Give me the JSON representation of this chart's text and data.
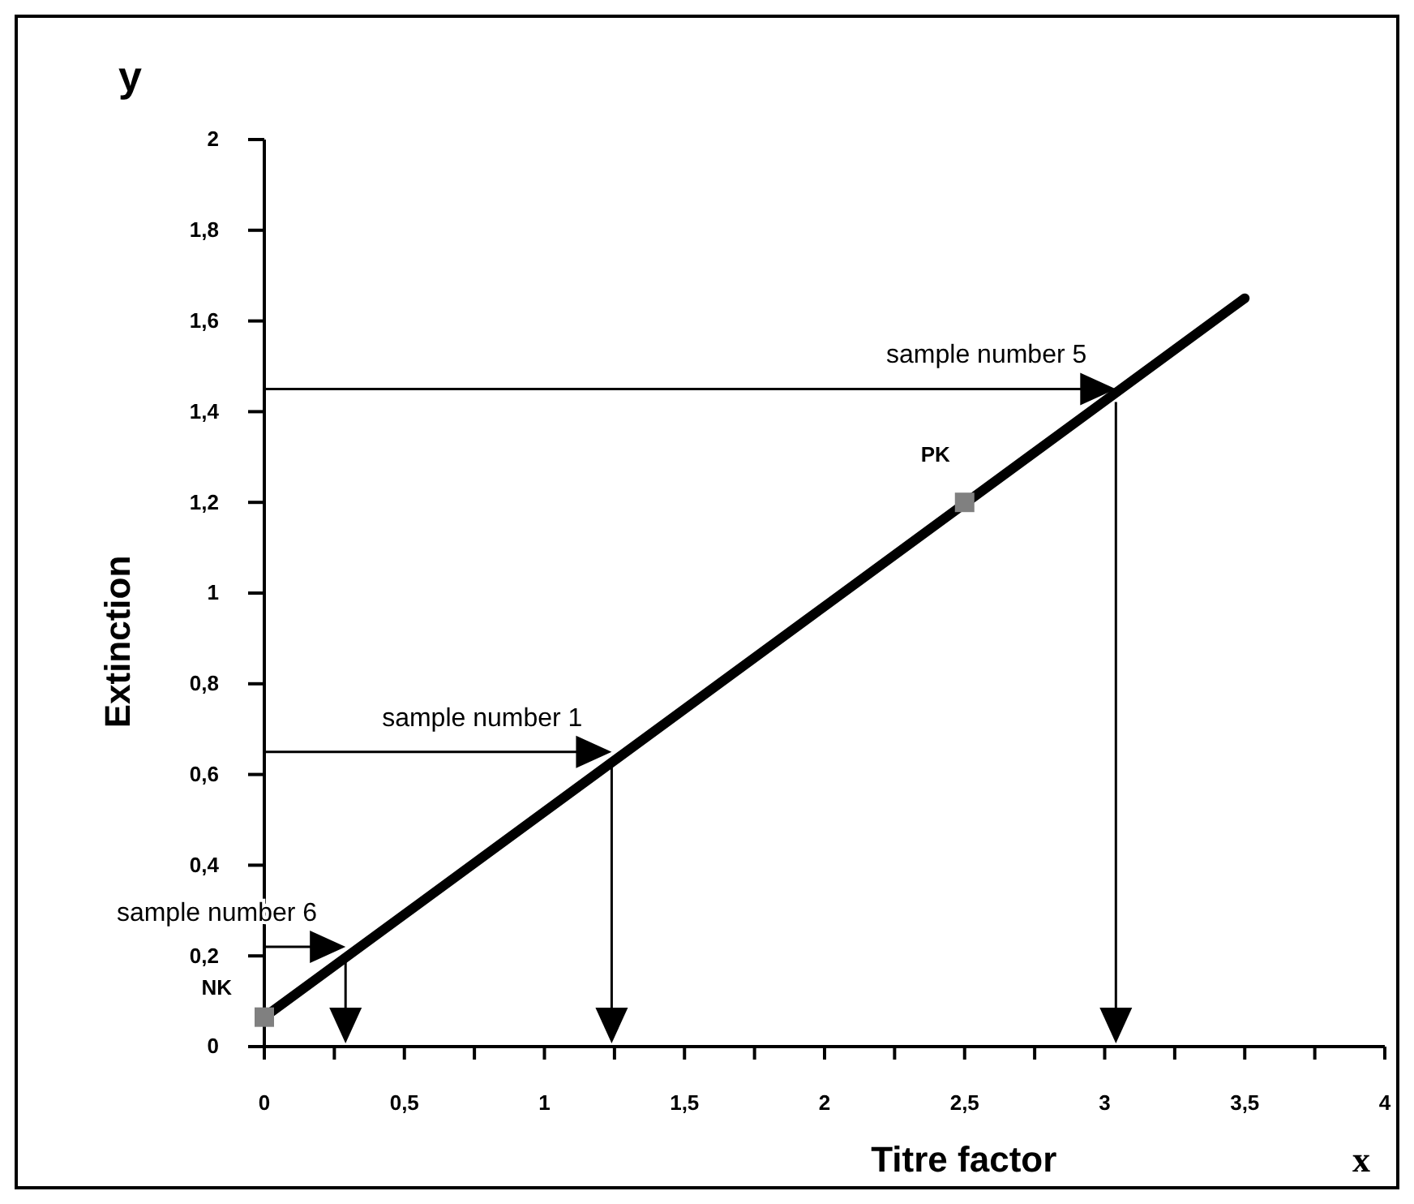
{
  "chart_data": {
    "type": "line",
    "xlabel": "Titre factor",
    "ylabel": "Extinction",
    "xlim": [
      0,
      4
    ],
    "ylim": [
      0,
      2
    ],
    "xticks": [
      0,
      {
        "value": 0.25,
        "label": null
      },
      {
        "value": 0.5,
        "label": "0,5"
      },
      {
        "value": 0.75,
        "label": null
      },
      1,
      {
        "value": 1.25,
        "label": null
      },
      {
        "value": 1.5,
        "label": "1,5"
      },
      {
        "value": 1.75,
        "label": null
      },
      2,
      {
        "value": 2.25,
        "label": null
      },
      {
        "value": 2.5,
        "label": "2,5"
      },
      {
        "value": 2.75,
        "label": null
      },
      3,
      {
        "value": 3.25,
        "label": null
      },
      {
        "value": 3.5,
        "label": "3,5"
      },
      {
        "value": 3.75,
        "label": null
      },
      4
    ],
    "yticks": [
      0,
      {
        "value": 0.2,
        "label": "0,2"
      },
      {
        "value": 0.4,
        "label": "0,4"
      },
      {
        "value": 0.6,
        "label": "0,6"
      },
      {
        "value": 0.8,
        "label": "0,8"
      },
      1,
      {
        "value": 1.2,
        "label": "1,2"
      },
      {
        "value": 1.4,
        "label": "1,4"
      },
      {
        "value": 1.6,
        "label": "1,6"
      },
      {
        "value": 1.8,
        "label": "1,8"
      },
      2
    ],
    "grid": false,
    "series": [
      {
        "color": "#000000",
        "x": [
          0,
          3.5
        ],
        "values": [
          0.065,
          1.65
        ]
      },
      {
        "type": "scatter",
        "color": "#808080",
        "marker": "square",
        "x": [
          0,
          2.5
        ],
        "values": [
          0.065,
          1.2
        ]
      }
    ],
    "annotations": [
      {
        "text": "NK",
        "x": 0,
        "y": 0.065
      },
      {
        "text": "PK",
        "x": 2.5,
        "y": 1.2
      },
      {
        "text": "sample number 6",
        "x": 0.29,
        "y": 0.22
      },
      {
        "text": "sample number 1",
        "x": 1.24,
        "y": 0.65
      },
      {
        "text": "sample number 5",
        "x": 3.04,
        "y": 1.45
      },
      "y",
      "x"
    ]
  }
}
